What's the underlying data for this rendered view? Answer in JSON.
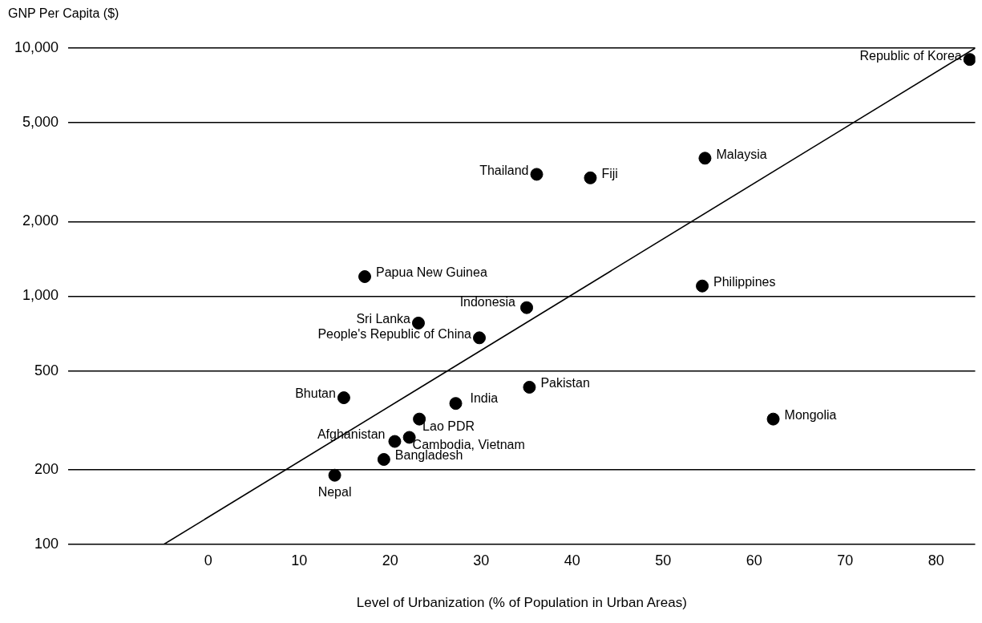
{
  "chart_data": {
    "type": "scatter",
    "ylabel": "GNP Per Capita ($)",
    "xlabel": "Level of Urbanization (% of Population in Urban Areas)",
    "log": "y",
    "grid": "y",
    "legend": false,
    "marker": "circle",
    "xlim": [
      -15.4,
      84.3
    ],
    "xticks": [
      0,
      10,
      20,
      30,
      40,
      50,
      60,
      70,
      80
    ],
    "ylim": [
      100,
      10000
    ],
    "yticks": [
      {
        "value": 100,
        "label": "100"
      },
      {
        "value": 200,
        "label": "200"
      },
      {
        "value": 500,
        "label": "500"
      },
      {
        "value": 1000,
        "label": "1,000"
      },
      {
        "value": 2000,
        "label": "2,000"
      },
      {
        "value": 5000,
        "label": "5,000"
      },
      {
        "value": 10000,
        "label": "10,000"
      }
    ],
    "series": [
      {
        "type": "scatter",
        "color": "#000000",
        "x": [
          83.7,
          54.6,
          36.1,
          42.0,
          17.2,
          54.3,
          35.0,
          23.1,
          29.8,
          35.3,
          14.9,
          27.2,
          23.2,
          62.1,
          22.1,
          20.5,
          19.3,
          13.9
        ],
        "values": [
          9000,
          3600,
          3100,
          3000,
          1200,
          1100,
          900,
          780,
          680,
          430,
          390,
          370,
          320,
          320,
          270,
          260,
          220,
          190
        ]
      },
      {
        "type": "line",
        "color": "#000000",
        "marker": "none",
        "x": [
          -4.9,
          84.3
        ],
        "values": [
          100,
          10000
        ]
      }
    ],
    "annotations": [
      {
        "text": "Republic of Korea",
        "x": 83.7,
        "y": 9000
      },
      {
        "text": "Malaysia",
        "x": 54.6,
        "y": 3600
      },
      {
        "text": "Thailand",
        "x": 36.1,
        "y": 3100
      },
      {
        "text": "Fiji",
        "x": 42.0,
        "y": 3000
      },
      {
        "text": "Papua New Guinea",
        "x": 17.2,
        "y": 1200
      },
      {
        "text": "Philippines",
        "x": 54.3,
        "y": 1100
      },
      {
        "text": "Indonesia",
        "x": 35.0,
        "y": 900
      },
      {
        "text": "Sri Lanka",
        "x": 23.1,
        "y": 780
      },
      {
        "text": "People's Republic of China",
        "x": 29.8,
        "y": 680
      },
      {
        "text": "Pakistan",
        "x": 35.3,
        "y": 430
      },
      {
        "text": "Bhutan",
        "x": 14.9,
        "y": 390
      },
      {
        "text": "India",
        "x": 27.2,
        "y": 370
      },
      {
        "text": "Lao PDR",
        "x": 23.2,
        "y": 320
      },
      {
        "text": "Mongolia",
        "x": 62.1,
        "y": 320
      },
      {
        "text": "Cambodia, Vietnam",
        "x": 22.1,
        "y": 270
      },
      {
        "text": "Afghanistan",
        "x": 20.5,
        "y": 260
      },
      {
        "text": "Bangladesh",
        "x": 19.3,
        "y": 220
      },
      {
        "text": "Nepal",
        "x": 13.9,
        "y": 190
      }
    ]
  }
}
